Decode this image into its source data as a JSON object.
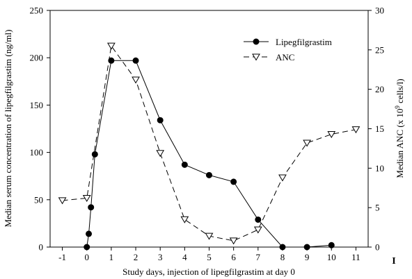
{
  "chart_data": {
    "type": "line",
    "xlabel": "Study days, injection of lipegfilgrastim at day 0",
    "ylabel_left": "Median serum concentration of lipegfilgrastim (ng/ml)",
    "ylabel_right_parts": [
      "Median ANC (x 10",
      "9",
      " cells/l)"
    ],
    "x_ticks": [
      -1,
      0,
      1,
      2,
      3,
      4,
      5,
      6,
      7,
      8,
      9,
      10,
      11
    ],
    "xlim": [
      -1.5,
      11.5
    ],
    "y_left_ticks": [
      0,
      50,
      100,
      150,
      200,
      250
    ],
    "ylim_left": [
      0,
      250
    ],
    "y_right_ticks": [
      0,
      5,
      10,
      15,
      20,
      25,
      30
    ],
    "ylim_right": [
      0,
      30
    ],
    "legend_position": "top-right",
    "series": [
      {
        "name": "Lipegfilgrastim",
        "axis": "left",
        "marker": "filled-circle",
        "line": "solid",
        "x": [
          0,
          0.08,
          0.17,
          0.33,
          1,
          2,
          3,
          4,
          5,
          6,
          7,
          8,
          9,
          10
        ],
        "y": [
          0,
          14,
          42,
          98,
          197,
          197,
          134,
          87,
          76,
          69,
          29,
          0,
          0,
          2
        ]
      },
      {
        "name": "ANC",
        "axis": "right",
        "marker": "open-triangle-down",
        "line": "dashed",
        "x": [
          -1,
          0,
          1,
          2,
          3,
          4,
          5,
          6,
          7,
          8,
          9,
          10,
          11
        ],
        "y": [
          5.9,
          6.2,
          25.5,
          21.2,
          11.9,
          3.5,
          1.4,
          0.8,
          2.2,
          8.8,
          13.2,
          14.3,
          14.9
        ]
      }
    ],
    "annotation": "I"
  }
}
